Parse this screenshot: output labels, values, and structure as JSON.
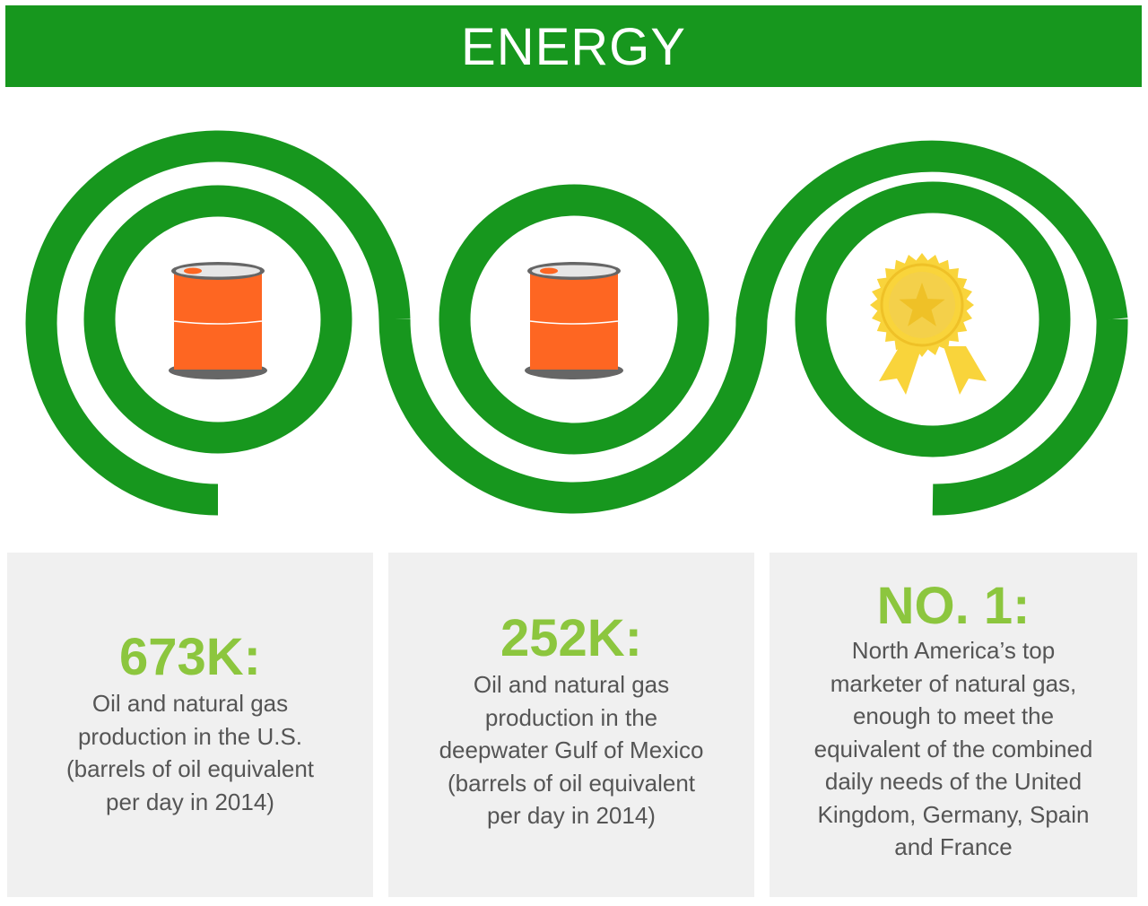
{
  "header": {
    "title": "ENERGY"
  },
  "colors": {
    "brand_green": "#17971e",
    "stat_green": "#8cc63e",
    "barrel_orange": "#fe6622",
    "medal_gold": "#f9d43b",
    "card_bg": "#f0f0f0",
    "text_gray": "#555555"
  },
  "icons": [
    "oil-barrel-icon",
    "oil-barrel-icon",
    "award-medal-icon"
  ],
  "cards": [
    {
      "stat": "673K:",
      "lines": [
        "Oil and natural gas",
        "production in the U.S.",
        "(barrels of oil equivalent",
        "per day in 2014)"
      ]
    },
    {
      "stat": "252K:",
      "lines": [
        "Oil and natural gas",
        "production in the",
        "deepwater Gulf of Mexico",
        "(barrels of oil equivalent",
        "per day in 2014)"
      ]
    },
    {
      "stat": "NO. 1:",
      "lines": [
        "North America’s top",
        "marketer of natural gas,",
        "enough to meet the",
        "equivalent of the combined",
        "daily needs of the United",
        "Kingdom, Germany, Spain",
        "and France"
      ]
    }
  ]
}
